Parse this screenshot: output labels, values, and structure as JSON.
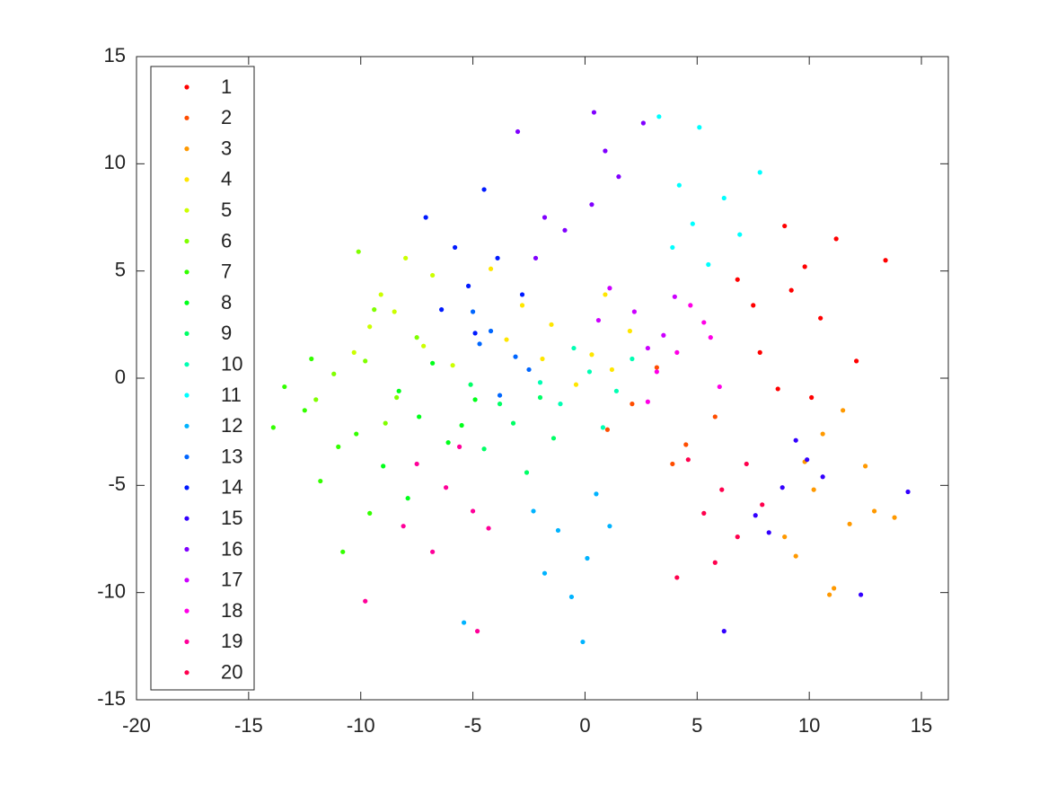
{
  "chart_data": {
    "type": "scatter",
    "xlim": [
      -20,
      16.2
    ],
    "ylim": [
      -15,
      15
    ],
    "xticks": [
      -20,
      -15,
      -10,
      -5,
      0,
      5,
      10,
      15
    ],
    "yticks": [
      -15,
      -10,
      -5,
      0,
      5,
      10,
      15
    ],
    "legend": "upper left",
    "series": [
      {
        "name": "1",
        "color": "#ff0000",
        "x": [
          9.2,
          7.8,
          10.5,
          8.6,
          11.2,
          9.8,
          7.5,
          12.1,
          8.9,
          10.1,
          13.4,
          6.8
        ],
        "y": [
          4.1,
          1.2,
          2.8,
          -0.5,
          6.5,
          5.2,
          3.4,
          0.8,
          7.1,
          -0.9,
          5.5,
          4.6
        ]
      },
      {
        "name": "2",
        "color": "#ff4d00",
        "x": [
          2.1,
          4.5,
          3.2,
          1.0,
          5.8,
          3.9
        ],
        "y": [
          -1.2,
          -3.1,
          0.5,
          -2.4,
          -1.8,
          -4.0
        ]
      },
      {
        "name": "3",
        "color": "#ff9900",
        "x": [
          10.2,
          11.8,
          12.5,
          9.4,
          11.1,
          10.6,
          12.9,
          8.9,
          11.5,
          13.8,
          10.9,
          9.8
        ],
        "y": [
          -5.2,
          -6.8,
          -4.1,
          -8.3,
          -9.8,
          -2.6,
          -6.2,
          -7.4,
          -1.5,
          -6.5,
          -10.1,
          -3.9
        ]
      },
      {
        "name": "4",
        "color": "#ffe600",
        "x": [
          -1.5,
          0.3,
          -2.8,
          1.2,
          -0.4,
          -3.5,
          0.9,
          2.0,
          -1.9,
          -4.2
        ],
        "y": [
          2.5,
          1.1,
          3.4,
          0.4,
          -0.3,
          1.8,
          3.9,
          2.2,
          0.9,
          5.1
        ]
      },
      {
        "name": "5",
        "color": "#ccff00",
        "x": [
          -8.5,
          -7.2,
          -9.6,
          -6.8,
          -10.3,
          -8.0,
          -5.9,
          -9.1
        ],
        "y": [
          3.1,
          1.5,
          2.4,
          4.8,
          1.2,
          5.6,
          0.6,
          3.9
        ]
      },
      {
        "name": "6",
        "color": "#80ff00",
        "x": [
          -9.8,
          -8.4,
          -11.2,
          -7.5,
          -10.1,
          -8.9,
          -12.0,
          -9.4
        ],
        "y": [
          0.8,
          -0.9,
          0.2,
          1.9,
          5.9,
          -2.1,
          -1.0,
          3.2
        ]
      },
      {
        "name": "7",
        "color": "#33ff00",
        "x": [
          -12.5,
          -11.0,
          -13.4,
          -10.2,
          -11.8,
          -9.6,
          -13.9,
          -10.8,
          -12.2
        ],
        "y": [
          -1.5,
          -3.2,
          -0.4,
          -2.6,
          -4.8,
          -6.3,
          -2.3,
          -8.1,
          0.9
        ]
      },
      {
        "name": "8",
        "color": "#00ff1a",
        "x": [
          -7.4,
          -6.1,
          -8.3,
          -5.5,
          -9.0,
          -6.8,
          -7.9,
          -4.9
        ],
        "y": [
          -1.8,
          -3.0,
          -0.6,
          -2.2,
          -4.1,
          0.7,
          -5.6,
          -1.0
        ]
      },
      {
        "name": "9",
        "color": "#00ff66",
        "x": [
          -3.2,
          -2.0,
          -4.5,
          -1.4,
          -3.8,
          -2.6,
          -5.1
        ],
        "y": [
          -2.1,
          -0.9,
          -3.3,
          -2.8,
          -1.2,
          -4.4,
          -0.3
        ]
      },
      {
        "name": "10",
        "color": "#00ffb3",
        "x": [
          0.2,
          -1.1,
          1.4,
          -0.5,
          2.1,
          0.8,
          -2.0
        ],
        "y": [
          0.3,
          -1.2,
          -0.6,
          1.4,
          0.9,
          -2.3,
          -0.2
        ]
      },
      {
        "name": "11",
        "color": "#00ffff",
        "x": [
          4.8,
          6.2,
          3.9,
          5.5,
          7.8,
          4.2,
          6.9,
          3.3,
          5.1
        ],
        "y": [
          7.2,
          8.4,
          6.1,
          5.3,
          9.6,
          9.0,
          6.7,
          12.2,
          11.7
        ]
      },
      {
        "name": "12",
        "color": "#00b3ff",
        "x": [
          -1.2,
          0.1,
          -2.3,
          -0.6,
          1.1,
          -1.8,
          0.5,
          -5.4,
          -0.1
        ],
        "y": [
          -7.1,
          -8.4,
          -6.2,
          -10.2,
          -6.9,
          -9.1,
          -5.4,
          -11.4,
          -12.3
        ]
      },
      {
        "name": "13",
        "color": "#0066ff",
        "x": [
          -4.2,
          -3.1,
          -5.0,
          -2.5,
          -3.8,
          -4.7
        ],
        "y": [
          2.2,
          1.0,
          3.1,
          0.4,
          -0.8,
          1.6
        ]
      },
      {
        "name": "14",
        "color": "#001aff",
        "x": [
          -5.2,
          -3.9,
          -6.4,
          -4.5,
          -7.1,
          -2.8,
          -5.8,
          -4.9
        ],
        "y": [
          4.3,
          5.6,
          3.2,
          8.8,
          7.5,
          3.9,
          6.1,
          2.1
        ]
      },
      {
        "name": "15",
        "color": "#3300ff",
        "x": [
          8.8,
          9.9,
          7.6,
          10.6,
          8.2,
          9.4,
          12.3,
          6.2,
          14.4
        ],
        "y": [
          -5.1,
          -3.8,
          -6.4,
          -4.6,
          -7.2,
          -2.9,
          -10.1,
          -11.8,
          -5.3
        ]
      },
      {
        "name": "16",
        "color": "#8000ff",
        "x": [
          0.3,
          -0.9,
          1.5,
          -1.8,
          0.9,
          2.6,
          -3.0,
          0.4,
          -2.2
        ],
        "y": [
          8.1,
          6.9,
          9.4,
          7.5,
          10.6,
          11.9,
          11.5,
          12.4,
          5.6
        ]
      },
      {
        "name": "17",
        "color": "#cc00ff",
        "x": [
          2.2,
          3.5,
          1.1,
          4.0,
          2.8,
          0.6
        ],
        "y": [
          3.1,
          2.0,
          4.2,
          3.8,
          1.4,
          2.7
        ]
      },
      {
        "name": "18",
        "color": "#ff00e6",
        "x": [
          4.1,
          5.3,
          3.2,
          6.0,
          4.7,
          2.8,
          5.6
        ],
        "y": [
          1.2,
          2.6,
          0.3,
          -0.4,
          3.4,
          -1.1,
          1.9
        ]
      },
      {
        "name": "19",
        "color": "#ff0099",
        "x": [
          -6.2,
          -5.0,
          -7.5,
          -4.3,
          -6.8,
          -5.6,
          -8.1,
          -9.8,
          -4.8
        ],
        "y": [
          -5.1,
          -6.2,
          -4.0,
          -7.0,
          -8.1,
          -3.2,
          -6.9,
          -10.4,
          -11.8
        ]
      },
      {
        "name": "20",
        "color": "#ff004d",
        "x": [
          6.1,
          7.2,
          5.3,
          6.8,
          4.6,
          7.9,
          5.8,
          4.1
        ],
        "y": [
          -5.2,
          -4.0,
          -6.3,
          -7.4,
          -3.8,
          -5.9,
          -8.6,
          -9.3
        ]
      }
    ]
  }
}
